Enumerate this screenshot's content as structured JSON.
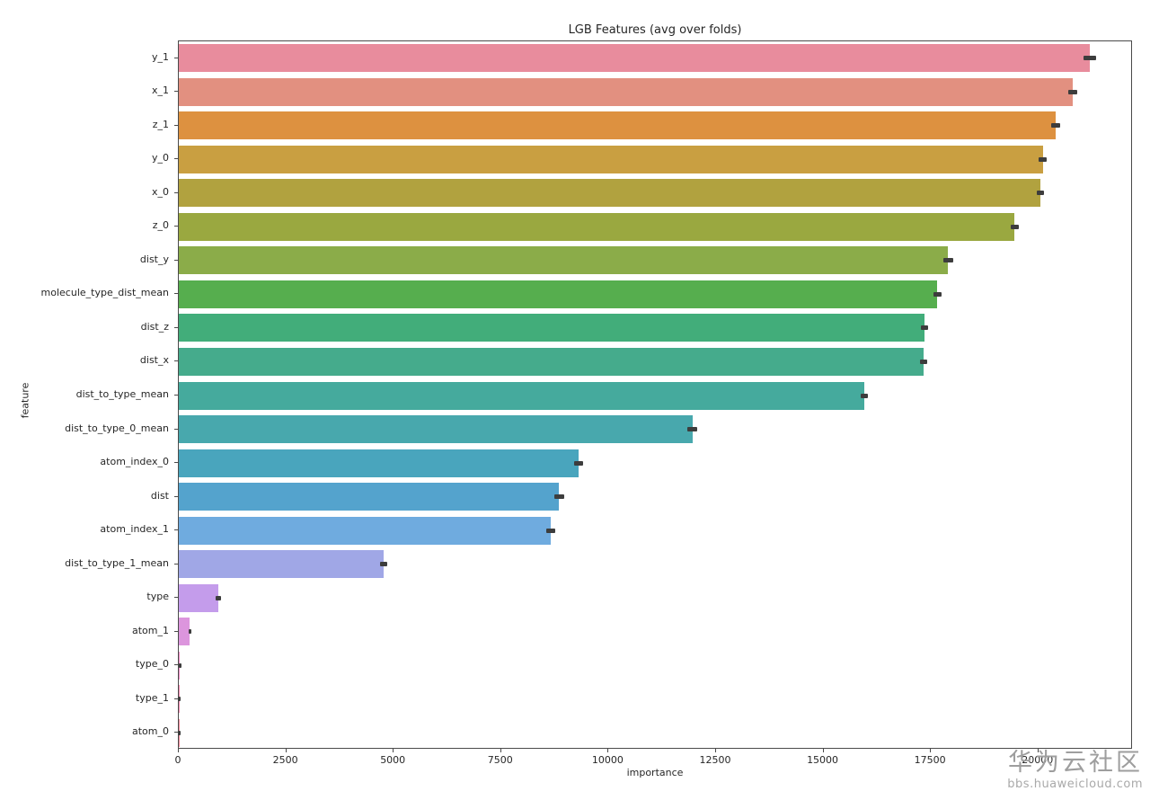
{
  "title": "LGB Features (avg over folds)",
  "axes": {
    "xlabel": "importance",
    "ylabel": "feature"
  },
  "watermark": {
    "line1": "华为云社区",
    "line2": "bbs.huaweicloud.com"
  },
  "colors": {
    "error_bar": "#3d3d3d",
    "spine": "#4a4a4a",
    "text": "#262626",
    "watermark": "#9e9e9e"
  },
  "chart_data": {
    "type": "bar",
    "orientation": "horizontal",
    "title": "LGB Features (avg over folds)",
    "xlabel": "importance",
    "ylabel": "feature",
    "xlim": [
      0,
      22200
    ],
    "xticks": [
      0,
      2500,
      5000,
      7500,
      10000,
      12500,
      15000,
      17500,
      20000
    ],
    "grid": false,
    "legend": null,
    "bars": [
      {
        "label": "y_1",
        "value": 21200,
        "error": 140,
        "color": "#e88c9d"
      },
      {
        "label": "x_1",
        "value": 20800,
        "error": 95,
        "color": "#e29080"
      },
      {
        "label": "z_1",
        "value": 20400,
        "error": 105,
        "color": "#dd9140"
      },
      {
        "label": "y_0",
        "value": 20100,
        "error": 100,
        "color": "#c99f41"
      },
      {
        "label": "x_0",
        "value": 20050,
        "error": 90,
        "color": "#b1a23f"
      },
      {
        "label": "z_0",
        "value": 19450,
        "error": 100,
        "color": "#9aa840"
      },
      {
        "label": "dist_y",
        "value": 17900,
        "error": 120,
        "color": "#8bac49"
      },
      {
        "label": "molecule_type_dist_mean",
        "value": 17650,
        "error": 90,
        "color": "#56ae4e"
      },
      {
        "label": "dist_z",
        "value": 17350,
        "error": 90,
        "color": "#42ad7a"
      },
      {
        "label": "dist_x",
        "value": 17330,
        "error": 90,
        "color": "#45ab8c"
      },
      {
        "label": "dist_to_type_mean",
        "value": 15950,
        "error": 90,
        "color": "#45aa9d"
      },
      {
        "label": "dist_to_type_0_mean",
        "value": 11950,
        "error": 120,
        "color": "#48a8ad"
      },
      {
        "label": "atom_index_0",
        "value": 9300,
        "error": 100,
        "color": "#49a5bd"
      },
      {
        "label": "dist",
        "value": 8850,
        "error": 110,
        "color": "#54a3cd"
      },
      {
        "label": "atom_index_1",
        "value": 8650,
        "error": 100,
        "color": "#6fabdf"
      },
      {
        "label": "dist_to_type_1_mean",
        "value": 4760,
        "error": 80,
        "color": "#a0a7e6"
      },
      {
        "label": "type",
        "value": 920,
        "error": 70,
        "color": "#c49ceb"
      },
      {
        "label": "atom_1",
        "value": 260,
        "error": 40,
        "color": "#dc95dd"
      },
      {
        "label": "type_0",
        "value": 30,
        "error": 25,
        "color": "#ed8bc4"
      },
      {
        "label": "type_1",
        "value": 10,
        "error": 8,
        "color": "#f08bb0"
      },
      {
        "label": "atom_0",
        "value": 3,
        "error": 3,
        "color": "#f18a9b"
      }
    ]
  }
}
